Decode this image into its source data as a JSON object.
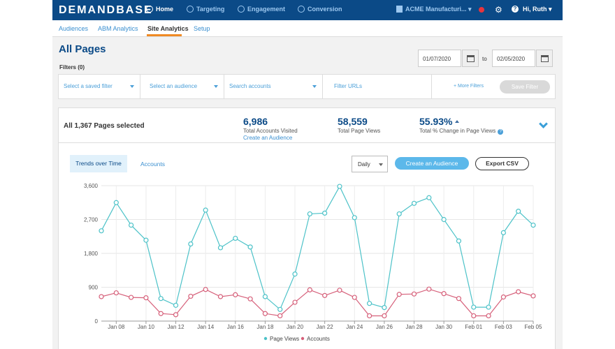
{
  "header": {
    "logo": "DEMANDBASE",
    "nav": [
      {
        "label": "Home",
        "icon": "home-icon"
      },
      {
        "label": "Targeting",
        "icon": "targeting-icon"
      },
      {
        "label": "Engagement",
        "icon": "megaphone-icon"
      },
      {
        "label": "Conversion",
        "icon": "funnel-icon"
      }
    ],
    "account": "ACME Manufacturi...",
    "user": "Hi, Ruth",
    "status_color": "#e8343d"
  },
  "subnav": [
    "Audiences",
    "ABM Analytics",
    "Site Analytics",
    "Setup"
  ],
  "page": {
    "title": "All Pages",
    "filters_label": "Filters (0)",
    "date_from": "01/07/2020",
    "to_label": "to",
    "date_to": "02/05/2020"
  },
  "filters": {
    "saved_filter": "Select a saved filter",
    "audience": "Select an audience",
    "accounts": "Search accounts",
    "urls": "Filter URLs",
    "more": "+ More Filters",
    "save": "Save Filter"
  },
  "summary": {
    "selected": "All 1,367 Pages selected",
    "accounts_value": "6,986",
    "accounts_label": "Total Accounts Visited",
    "create_link": "Create an Audience",
    "views_value": "58,559",
    "views_label": "Total Page Views",
    "change_value": "55.93%",
    "change_label": "Total % Change in Page Views"
  },
  "controls": {
    "tab_trends": "Trends over Time",
    "tab_accounts": "Accounts",
    "interval": "Daily",
    "create_audience": "Create an Audience",
    "export": "Export CSV"
  },
  "chart_data": {
    "type": "line",
    "x_labels": [
      "Jan 08",
      "Jan 10",
      "Jan 12",
      "Jan 14",
      "Jan 16",
      "Jan 18",
      "Jan 20",
      "Jan 22",
      "Jan 24",
      "Jan 26",
      "Jan 28",
      "Jan 30",
      "Feb 01",
      "Feb 03",
      "Feb 05"
    ],
    "y_ticks": [
      "0",
      "900",
      "1,800",
      "2,700",
      "3,600"
    ],
    "ylim": [
      0,
      3600
    ],
    "grid": true,
    "legend_position": "bottom",
    "series": [
      {
        "name": "Page Views",
        "color": "#4cc2c8",
        "values": [
          2400,
          3150,
          2550,
          2150,
          600,
          420,
          2050,
          2950,
          1950,
          2200,
          1970,
          650,
          310,
          1250,
          2850,
          2870,
          3580,
          2750,
          470,
          360,
          2850,
          3130,
          3280,
          2700,
          2130,
          370,
          370,
          2350,
          2920,
          2550
        ]
      },
      {
        "name": "Accounts",
        "color": "#d6607a",
        "values": [
          650,
          750,
          630,
          620,
          200,
          170,
          660,
          840,
          650,
          700,
          590,
          200,
          140,
          500,
          830,
          680,
          820,
          630,
          140,
          140,
          710,
          720,
          850,
          730,
          600,
          140,
          140,
          640,
          780,
          670
        ]
      }
    ]
  }
}
